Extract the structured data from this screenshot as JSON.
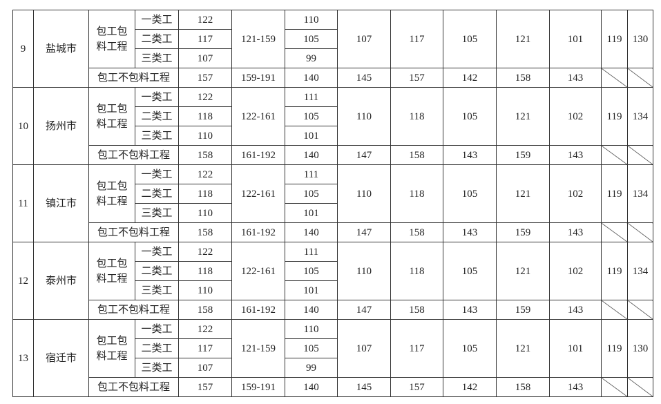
{
  "table": {
    "blocks": [
      {
        "no": "9",
        "city": "盐城市",
        "contract": "包工包料工程",
        "classes": [
          {
            "name": "一类工",
            "a": 122,
            "c": 110
          },
          {
            "name": "二类工",
            "a": 117,
            "c": 105
          },
          {
            "name": "三类工",
            "a": 107,
            "c": 99
          }
        ],
        "range": "121-159",
        "cols": [
          107,
          117,
          105,
          121,
          101
        ],
        "i": 119,
        "j": 130,
        "labor": {
          "label": "包工不包料工程",
          "a": 157,
          "range": "159-191",
          "c": 140,
          "cols": [
            145,
            157,
            142,
            158,
            143
          ]
        }
      },
      {
        "no": "10",
        "city": "扬州市",
        "contract": "包工包料工程",
        "classes": [
          {
            "name": "一类工",
            "a": 122,
            "c": 111
          },
          {
            "name": "二类工",
            "a": 118,
            "c": 105
          },
          {
            "name": "三类工",
            "a": 110,
            "c": 101
          }
        ],
        "range": "122-161",
        "cols": [
          110,
          118,
          105,
          121,
          102
        ],
        "i": 119,
        "j": 134,
        "labor": {
          "label": "包工不包料工程",
          "a": 158,
          "range": "161-192",
          "c": 140,
          "cols": [
            147,
            158,
            143,
            159,
            143
          ]
        }
      },
      {
        "no": "11",
        "city": "镇江市",
        "contract": "包工包料工程",
        "classes": [
          {
            "name": "一类工",
            "a": 122,
            "c": 111
          },
          {
            "name": "二类工",
            "a": 118,
            "c": 105
          },
          {
            "name": "三类工",
            "a": 110,
            "c": 101
          }
        ],
        "range": "122-161",
        "cols": [
          110,
          118,
          105,
          121,
          102
        ],
        "i": 119,
        "j": 134,
        "labor": {
          "label": "包工不包料工程",
          "a": 158,
          "range": "161-192",
          "c": 140,
          "cols": [
            147,
            158,
            143,
            159,
            143
          ]
        }
      },
      {
        "no": "12",
        "city": "泰州市",
        "contract": "包工包料工程",
        "classes": [
          {
            "name": "一类工",
            "a": 122,
            "c": 111
          },
          {
            "name": "二类工",
            "a": 118,
            "c": 105
          },
          {
            "name": "三类工",
            "a": 110,
            "c": 101
          }
        ],
        "range": "122-161",
        "cols": [
          110,
          118,
          105,
          121,
          102
        ],
        "i": 119,
        "j": 134,
        "labor": {
          "label": "包工不包料工程",
          "a": 158,
          "range": "161-192",
          "c": 140,
          "cols": [
            147,
            158,
            143,
            159,
            143
          ]
        }
      },
      {
        "no": "13",
        "city": "宿迁市",
        "contract": "包工包料工程",
        "classes": [
          {
            "name": "一类工",
            "a": 122,
            "c": 110
          },
          {
            "name": "二类工",
            "a": 117,
            "c": 105
          },
          {
            "name": "三类工",
            "a": 107,
            "c": 99
          }
        ],
        "range": "121-159",
        "cols": [
          107,
          117,
          105,
          121,
          101
        ],
        "i": 119,
        "j": 130,
        "labor": {
          "label": "包工不包料工程",
          "a": 157,
          "range": "159-191",
          "c": 140,
          "cols": [
            145,
            157,
            142,
            158,
            143
          ]
        }
      }
    ]
  }
}
